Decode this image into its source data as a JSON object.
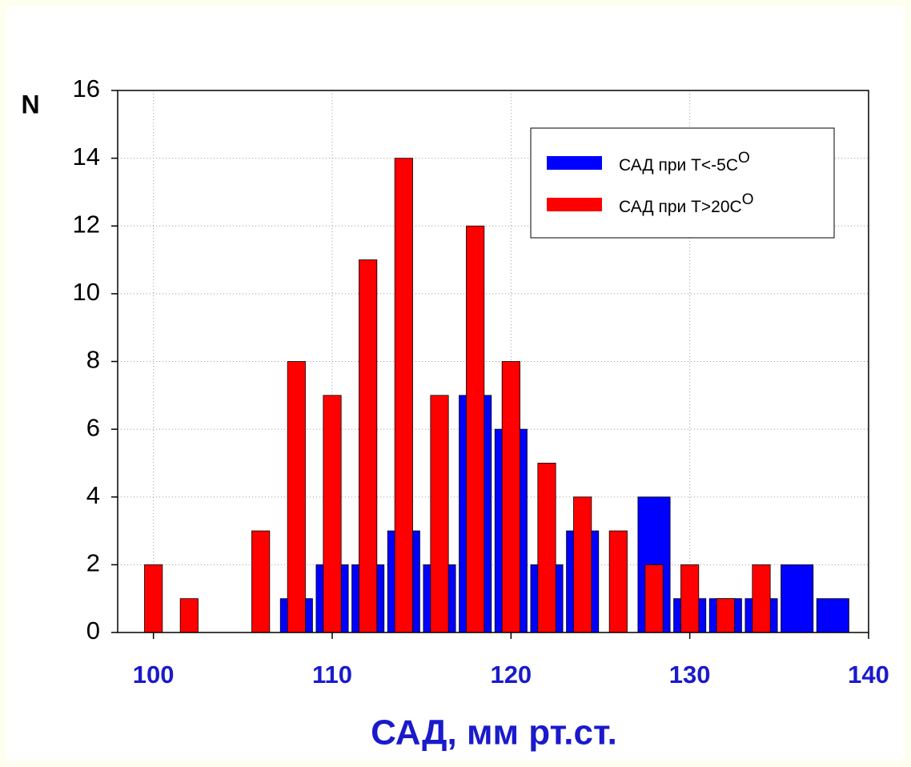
{
  "chart_data": {
    "type": "bar",
    "x_label": "САД, мм рт.ст.",
    "y_label": "N",
    "x": [
      100,
      102,
      104,
      106,
      108,
      110,
      112,
      114,
      116,
      118,
      120,
      122,
      124,
      126,
      128,
      130,
      132,
      134,
      136,
      138
    ],
    "series": [
      {
        "name": "САД при T<-5C",
        "name_superscript": "O",
        "color": "#0000ff",
        "values": [
          0,
          0,
          0,
          0,
          1,
          2,
          2,
          3,
          2,
          7,
          6,
          2,
          3,
          0,
          4,
          1,
          1,
          1,
          2,
          1
        ]
      },
      {
        "name": "САД при T>20C",
        "name_superscript": "O",
        "color": "#ff0000",
        "values": [
          2,
          1,
          0,
          3,
          8,
          7,
          11,
          14,
          7,
          12,
          8,
          5,
          4,
          3,
          2,
          2,
          1,
          2,
          0,
          0
        ]
      }
    ],
    "xlim": [
      98,
      140
    ],
    "xticks": [
      100,
      110,
      120,
      130,
      140
    ],
    "ylim": [
      0,
      16
    ],
    "yticks": [
      0,
      2,
      4,
      6,
      8,
      10,
      12,
      14,
      16
    ],
    "grid": true,
    "legend": "upper right"
  }
}
